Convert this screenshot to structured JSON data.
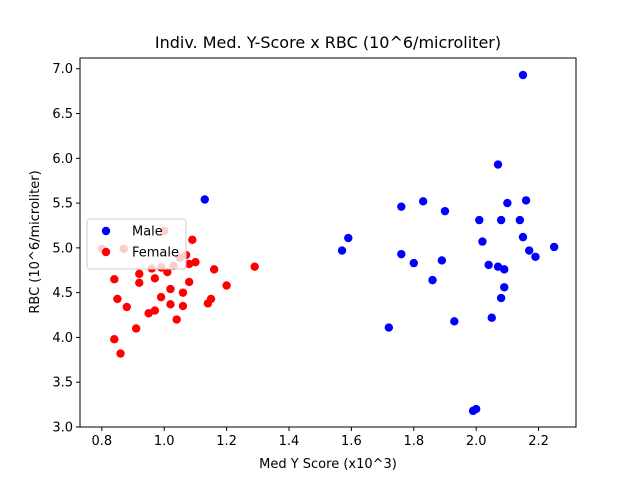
{
  "chart_data": {
    "type": "scatter",
    "title": "Indiv. Med. Y-Score x RBC (10^6/microliter)",
    "xlabel": "Med Y Score (x10^3)",
    "ylabel": "RBC (10^6/microliter)",
    "xlim": [
      0.73,
      2.32
    ],
    "ylim": [
      3.0,
      7.12
    ],
    "xticks": [
      0.8,
      1.0,
      1.2,
      1.4,
      1.6,
      1.8,
      2.0,
      2.2
    ],
    "xtick_labels": [
      "0.8",
      "1.0",
      "1.2",
      "1.4",
      "1.6",
      "1.8",
      "2.0",
      "2.2"
    ],
    "yticks": [
      3.0,
      3.5,
      4.0,
      4.5,
      5.0,
      5.5,
      6.0,
      6.5,
      7.0
    ],
    "ytick_labels": [
      "3.0",
      "3.5",
      "4.0",
      "4.5",
      "5.0",
      "5.5",
      "6.0",
      "6.5",
      "7.0"
    ],
    "grid": false,
    "legend": "center-left",
    "series": [
      {
        "name": "Male",
        "color": "#0000ff",
        "points": [
          [
            1.13,
            5.54
          ],
          [
            1.57,
            4.97
          ],
          [
            1.59,
            5.11
          ],
          [
            1.72,
            4.11
          ],
          [
            1.76,
            5.46
          ],
          [
            1.76,
            4.93
          ],
          [
            1.8,
            4.83
          ],
          [
            1.83,
            5.52
          ],
          [
            1.86,
            4.64
          ],
          [
            1.89,
            4.86
          ],
          [
            1.9,
            5.41
          ],
          [
            1.93,
            4.18
          ],
          [
            1.99,
            3.18
          ],
          [
            2.0,
            3.2
          ],
          [
            2.01,
            5.31
          ],
          [
            2.02,
            5.07
          ],
          [
            2.04,
            4.81
          ],
          [
            2.05,
            4.22
          ],
          [
            2.07,
            4.79
          ],
          [
            2.07,
            5.93
          ],
          [
            2.08,
            5.31
          ],
          [
            2.08,
            4.44
          ],
          [
            2.09,
            4.56
          ],
          [
            2.09,
            4.76
          ],
          [
            2.1,
            5.5
          ],
          [
            2.14,
            5.31
          ],
          [
            2.15,
            6.93
          ],
          [
            2.15,
            5.12
          ],
          [
            2.16,
            5.53
          ],
          [
            2.17,
            4.97
          ],
          [
            2.19,
            4.9
          ],
          [
            2.25,
            5.01
          ]
        ]
      },
      {
        "name": "Female",
        "color": "#ff0000",
        "points": [
          [
            0.8,
            4.99
          ],
          [
            0.84,
            4.65
          ],
          [
            0.84,
            3.98
          ],
          [
            0.85,
            4.43
          ],
          [
            0.86,
            3.82
          ],
          [
            0.87,
            4.99
          ],
          [
            0.88,
            4.34
          ],
          [
            0.91,
            4.1
          ],
          [
            0.92,
            4.71
          ],
          [
            0.92,
            4.61
          ],
          [
            0.95,
            4.27
          ],
          [
            0.96,
            4.77
          ],
          [
            0.97,
            4.66
          ],
          [
            0.97,
            4.3
          ],
          [
            0.99,
            4.45
          ],
          [
            0.99,
            4.78
          ],
          [
            1.0,
            5.19
          ],
          [
            1.01,
            4.73
          ],
          [
            1.02,
            4.54
          ],
          [
            1.02,
            4.37
          ],
          [
            1.03,
            4.8
          ],
          [
            1.04,
            4.2
          ],
          [
            1.05,
            4.89
          ],
          [
            1.06,
            4.35
          ],
          [
            1.06,
            4.5
          ],
          [
            1.07,
            4.92
          ],
          [
            1.08,
            4.82
          ],
          [
            1.08,
            4.62
          ],
          [
            1.09,
            5.09
          ],
          [
            1.1,
            4.84
          ],
          [
            1.14,
            4.38
          ],
          [
            1.15,
            4.43
          ],
          [
            1.16,
            4.76
          ],
          [
            1.2,
            4.58
          ],
          [
            1.29,
            4.79
          ]
        ]
      }
    ]
  }
}
